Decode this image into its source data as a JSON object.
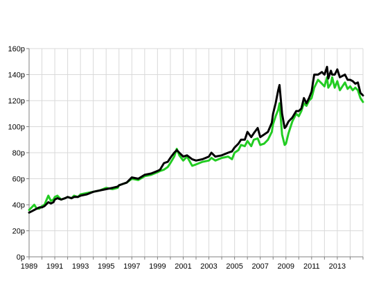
{
  "chart_data": {
    "type": "line",
    "title": "",
    "xlabel": "",
    "ylabel": "",
    "xlim": [
      1989,
      2015
    ],
    "ylim": [
      0,
      160
    ],
    "y_ticks": [
      0,
      20,
      40,
      60,
      80,
      100,
      120,
      140,
      160
    ],
    "y_tick_labels": [
      "0p",
      "20p",
      "40p",
      "60p",
      "80p",
      "100p",
      "120p",
      "140p",
      "160p"
    ],
    "x_ticks": [
      1989,
      1991,
      1993,
      1995,
      1997,
      1999,
      2001,
      2003,
      2005,
      2007,
      2009,
      2011,
      2013
    ],
    "x_tick_labels": [
      "1989",
      "1991",
      "1993",
      "1995",
      "1997",
      "1999",
      "2001",
      "2003",
      "2005",
      "2007",
      "2009",
      "2011",
      "2013"
    ],
    "grid": true,
    "legend": "none",
    "series": [
      {
        "color": "#22cc22",
        "x": [
          1989.0,
          1989.2,
          1989.4,
          1989.6,
          1989.8,
          1990.0,
          1990.2,
          1990.5,
          1990.7,
          1990.9,
          1991.0,
          1991.2,
          1991.5,
          1991.8,
          1992.0,
          1992.3,
          1992.5,
          1992.8,
          1993.0,
          1993.5,
          1994.0,
          1994.5,
          1995.0,
          1995.5,
          1995.9,
          1996.0,
          1996.3,
          1996.6,
          1997.0,
          1997.5,
          1998.0,
          1998.5,
          1999.0,
          1999.2,
          1999.5,
          1999.8,
          2000.0,
          2000.3,
          2000.5,
          2000.7,
          2001.0,
          2001.3,
          2001.7,
          2002.0,
          2002.5,
          2003.0,
          2003.2,
          2003.5,
          2004.0,
          2004.5,
          2004.8,
          2005.0,
          2005.3,
          2005.5,
          2005.8,
          2006.0,
          2006.3,
          2006.5,
          2006.8,
          2007.0,
          2007.3,
          2007.6,
          2007.9,
          2008.0,
          2008.2,
          2008.4,
          2008.5,
          2008.7,
          2008.9,
          2009.0,
          2009.2,
          2009.5,
          2009.8,
          2010.0,
          2010.2,
          2010.4,
          2010.6,
          2010.8,
          2011.0,
          2011.2,
          2011.5,
          2011.8,
          2012.0,
          2012.2,
          2012.3,
          2012.5,
          2012.6,
          2012.8,
          2013.0,
          2013.2,
          2013.4,
          2013.6,
          2013.8,
          2014.0,
          2014.2,
          2014.4,
          2014.6,
          2014.8,
          2015.0
        ],
        "values": [
          36,
          38,
          40,
          37,
          37,
          39,
          40,
          47,
          43,
          44,
          46,
          47,
          44,
          45,
          46,
          45,
          47,
          46,
          48,
          49,
          50,
          51,
          53,
          52,
          53,
          55,
          56,
          57,
          60,
          59,
          62,
          63,
          65,
          66,
          67,
          69,
          72,
          77,
          83,
          78,
          74,
          77,
          70,
          71,
          73,
          74,
          76,
          74,
          76,
          77,
          75,
          80,
          82,
          86,
          85,
          89,
          85,
          90,
          91,
          86,
          87,
          90,
          96,
          102,
          108,
          113,
          118,
          94,
          86,
          87,
          95,
          104,
          110,
          108,
          112,
          118,
          116,
          120,
          122,
          130,
          136,
          133,
          131,
          138,
          130,
          133,
          138,
          130,
          135,
          128,
          131,
          134,
          129,
          131,
          128,
          130,
          128,
          122,
          119
        ]
      },
      {
        "color": "#000000",
        "x": [
          1989.0,
          1989.2,
          1989.4,
          1989.6,
          1989.8,
          1990.0,
          1990.2,
          1990.5,
          1990.7,
          1990.9,
          1991.0,
          1991.2,
          1991.5,
          1991.8,
          1992.0,
          1992.3,
          1992.5,
          1992.8,
          1993.0,
          1993.5,
          1994.0,
          1994.5,
          1995.0,
          1995.5,
          1995.9,
          1996.0,
          1996.3,
          1996.6,
          1997.0,
          1997.5,
          1998.0,
          1998.5,
          1999.0,
          1999.2,
          1999.5,
          1999.8,
          2000.0,
          2000.3,
          2000.5,
          2000.7,
          2001.0,
          2001.3,
          2001.7,
          2002.0,
          2002.5,
          2003.0,
          2003.2,
          2003.5,
          2004.0,
          2004.5,
          2004.8,
          2005.0,
          2005.3,
          2005.5,
          2005.8,
          2006.0,
          2006.3,
          2006.5,
          2006.8,
          2007.0,
          2007.3,
          2007.6,
          2007.9,
          2008.0,
          2008.2,
          2008.4,
          2008.5,
          2008.7,
          2008.9,
          2009.0,
          2009.2,
          2009.5,
          2009.8,
          2010.0,
          2010.2,
          2010.4,
          2010.6,
          2010.8,
          2011.0,
          2011.2,
          2011.5,
          2011.8,
          2012.0,
          2012.2,
          2012.3,
          2012.5,
          2012.6,
          2012.8,
          2013.0,
          2013.2,
          2013.4,
          2013.6,
          2013.8,
          2014.0,
          2014.2,
          2014.4,
          2014.6,
          2014.8,
          2015.0
        ],
        "values": [
          34,
          35,
          36,
          37,
          38,
          38,
          39,
          42,
          41,
          42,
          44,
          45,
          44,
          45,
          46,
          45,
          46,
          46,
          47,
          48,
          50,
          51,
          52,
          53,
          54,
          55,
          56,
          57,
          61,
          60,
          63,
          64,
          66,
          67,
          72,
          73,
          76,
          80,
          82,
          80,
          77,
          78,
          75,
          74,
          75,
          77,
          80,
          77,
          78,
          80,
          81,
          84,
          87,
          90,
          90,
          96,
          92,
          95,
          99,
          92,
          94,
          96,
          103,
          110,
          118,
          128,
          132,
          110,
          99,
          100,
          104,
          107,
          112,
          112,
          114,
          122,
          118,
          122,
          127,
          140,
          140,
          142,
          140,
          146,
          137,
          143,
          140,
          140,
          144,
          138,
          139,
          140,
          136,
          136,
          135,
          133,
          134,
          126,
          124
        ]
      }
    ]
  }
}
